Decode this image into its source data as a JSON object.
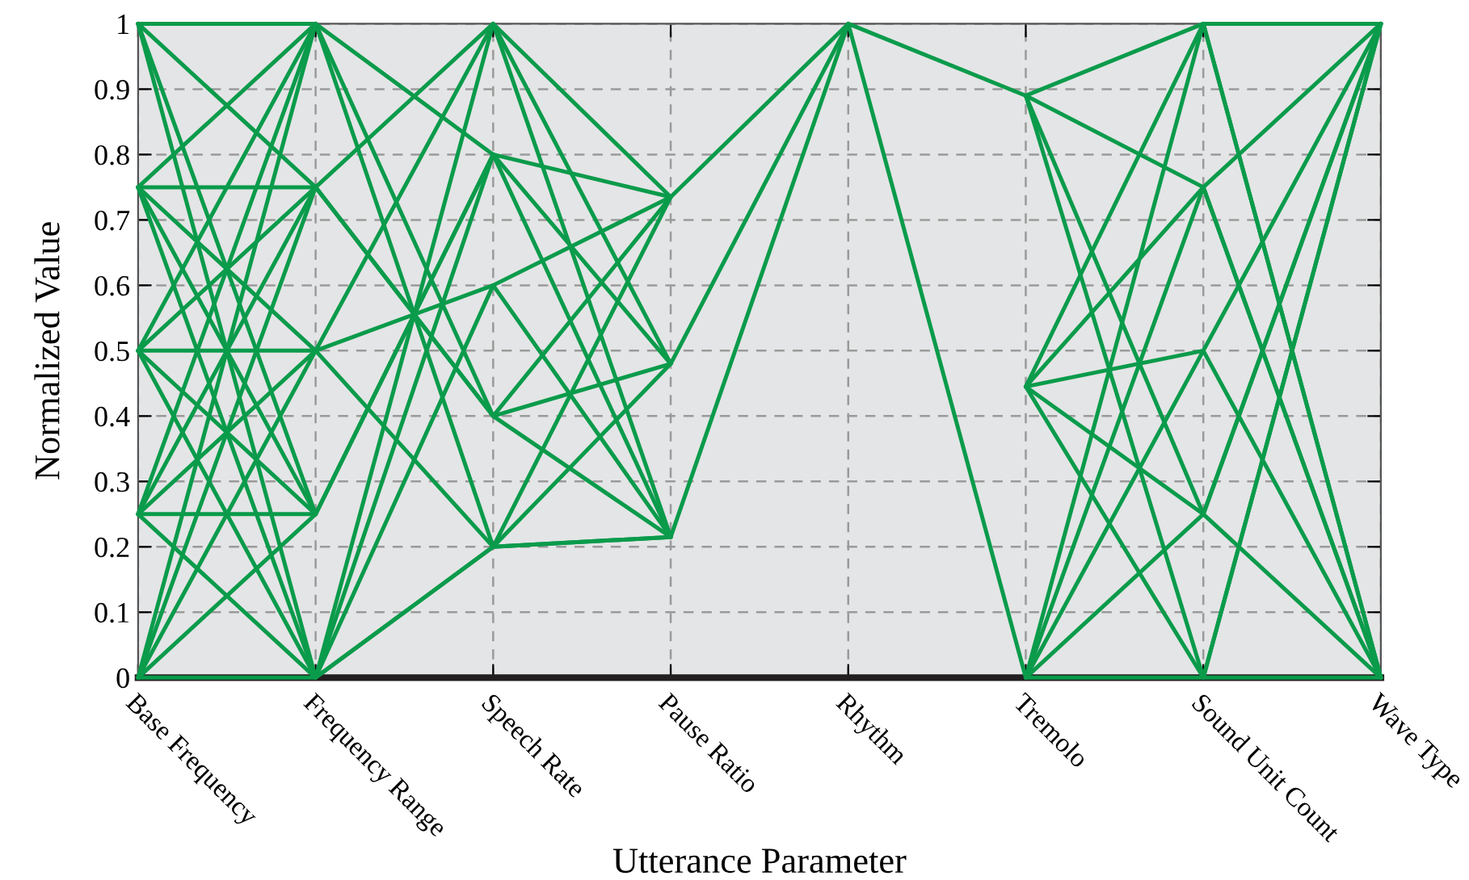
{
  "chart_data": {
    "type": "line",
    "xlabel": "Utterance Parameter",
    "ylabel": "Normalized Value",
    "categories": [
      "Base Frequency",
      "Frequency Range",
      "Speech Rate",
      "Pause Ratio",
      "Rhythm",
      "Tremolo",
      "Sound Unit Count",
      "Wave Type"
    ],
    "ylim": [
      0,
      1
    ],
    "yticks": [
      0,
      0.1,
      0.2,
      0.3,
      0.4,
      0.5,
      0.6,
      0.7,
      0.8,
      0.9,
      1
    ],
    "grid": true,
    "line_style": "solid",
    "marker": "none",
    "series": [
      {
        "color": "#0a9b4b",
        "values": [
          1,
          1,
          0.8,
          0.735,
          1,
          0.89,
          1,
          1
        ]
      },
      {
        "color": "#0a9b4b",
        "values": [
          1,
          0.75,
          0.4,
          0.48,
          1,
          0,
          0,
          0
        ]
      },
      {
        "color": "#0a9b4b",
        "values": [
          1,
          0.25,
          0.8,
          0.215,
          1,
          null,
          null,
          null
        ]
      },
      {
        "color": "#0a9b4b",
        "values": [
          1,
          0,
          1,
          0.735,
          null,
          null,
          null,
          null
        ]
      },
      {
        "color": "#0a9b4b",
        "values": [
          0.75,
          0.75,
          1,
          0.48,
          null,
          null,
          null,
          null
        ]
      },
      {
        "color": "#0a9b4b",
        "values": [
          0.75,
          1,
          0.2,
          0.215,
          null,
          null,
          null,
          null
        ]
      },
      {
        "color": "#0a9b4b",
        "values": [
          0.75,
          0.25,
          null,
          null,
          null,
          null,
          null,
          null
        ]
      },
      {
        "color": "#0a9b4b",
        "values": [
          0.75,
          0,
          0.8,
          0.48,
          null,
          null,
          null,
          null
        ]
      },
      {
        "color": "#0a9b4b",
        "values": [
          0.75,
          0.5,
          0.6,
          0.735,
          null,
          null,
          null,
          null
        ]
      },
      {
        "color": "#0a9b4b",
        "values": [
          0.5,
          0.5,
          1,
          0.215,
          null,
          null,
          null,
          null
        ]
      },
      {
        "color": "#0a9b4b",
        "values": [
          0.5,
          1,
          0.4,
          0.215,
          null,
          null,
          null,
          null
        ]
      },
      {
        "color": "#0a9b4b",
        "values": [
          0.5,
          0.75,
          0.4,
          0.735,
          null,
          null,
          null,
          null
        ]
      },
      {
        "color": "#0a9b4b",
        "values": [
          0.5,
          0.25,
          null,
          null,
          null,
          null,
          null,
          null
        ]
      },
      {
        "color": "#0a9b4b",
        "values": [
          0.5,
          0,
          0.6,
          0.215,
          null,
          null,
          null,
          null
        ]
      },
      {
        "color": "#0a9b4b",
        "values": [
          0.25,
          0.25,
          0.8,
          null,
          null,
          null,
          null,
          null
        ]
      },
      {
        "color": "#0a9b4b",
        "values": [
          0.25,
          1,
          null,
          null,
          null,
          null,
          null,
          null
        ]
      },
      {
        "color": "#0a9b4b",
        "values": [
          0.25,
          0.75,
          null,
          null,
          null,
          null,
          null,
          null
        ]
      },
      {
        "color": "#0a9b4b",
        "values": [
          0.25,
          0.5,
          0.2,
          0.735,
          null,
          null,
          null,
          null
        ]
      },
      {
        "color": "#0a9b4b",
        "values": [
          0.25,
          0,
          0.2,
          0.215,
          null,
          null,
          null,
          null
        ]
      },
      {
        "color": "#0a9b4b",
        "values": [
          0,
          0,
          0.2,
          0.48,
          null,
          null,
          null,
          null
        ]
      },
      {
        "color": "#0a9b4b",
        "values": [
          0,
          1,
          null,
          null,
          null,
          null,
          null,
          null
        ]
      },
      {
        "color": "#0a9b4b",
        "values": [
          0,
          0.75,
          null,
          null,
          null,
          null,
          null,
          null
        ]
      },
      {
        "color": "#0a9b4b",
        "values": [
          0,
          0.5,
          null,
          null,
          null,
          null,
          null,
          null
        ]
      },
      {
        "color": "#0a9b4b",
        "values": [
          0,
          0.25,
          null,
          null,
          null,
          null,
          null,
          null
        ]
      },
      {
        "color": "#0a9b4b",
        "values": [
          null,
          null,
          null,
          null,
          null,
          0.89,
          0.75,
          0
        ]
      },
      {
        "color": "#0a9b4b",
        "values": [
          null,
          null,
          null,
          null,
          null,
          0.89,
          0.25,
          1
        ]
      },
      {
        "color": "#0a9b4b",
        "values": [
          null,
          null,
          null,
          null,
          null,
          0.89,
          0,
          1
        ]
      },
      {
        "color": "#0a9b4b",
        "values": [
          null,
          null,
          null,
          null,
          null,
          0.445,
          1,
          0
        ]
      },
      {
        "color": "#0a9b4b",
        "values": [
          null,
          null,
          null,
          null,
          null,
          0.445,
          0.75,
          1
        ]
      },
      {
        "color": "#0a9b4b",
        "values": [
          null,
          null,
          null,
          null,
          null,
          0.445,
          0.5,
          0
        ]
      },
      {
        "color": "#0a9b4b",
        "values": [
          null,
          null,
          null,
          null,
          null,
          0.445,
          0.25,
          0
        ]
      },
      {
        "color": "#0a9b4b",
        "values": [
          null,
          null,
          null,
          null,
          null,
          0.445,
          0,
          1
        ]
      },
      {
        "color": "#0a9b4b",
        "values": [
          null,
          null,
          null,
          null,
          null,
          0,
          1,
          0
        ]
      },
      {
        "color": "#0a9b4b",
        "values": [
          null,
          null,
          null,
          null,
          null,
          0,
          0.75,
          0
        ]
      },
      {
        "color": "#0a9b4b",
        "values": [
          null,
          null,
          null,
          null,
          null,
          0,
          0.5,
          1
        ]
      },
      {
        "color": "#0a9b4b",
        "values": [
          null,
          null,
          null,
          null,
          null,
          0,
          0.25,
          1
        ]
      }
    ]
  }
}
